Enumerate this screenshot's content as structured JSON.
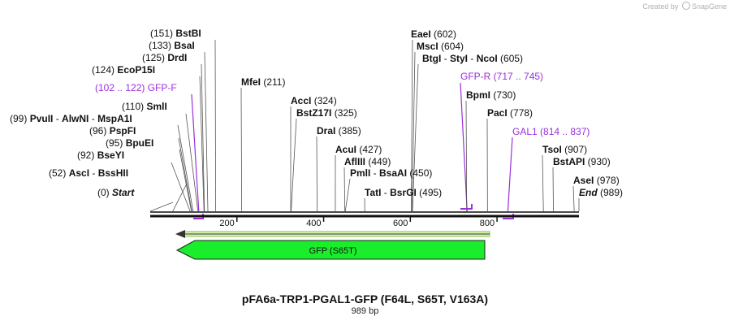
{
  "title": "pFA6a-TRP1-PGAL1-GFP (F64L, S65T, V163A)",
  "length_label": "989 bp",
  "brand": {
    "prefix": "Created by",
    "name": "SnapGene"
  },
  "scale": {
    "min_bp": 0,
    "max_bp": 989,
    "ticks": [
      "200",
      "400",
      "600",
      "800"
    ]
  },
  "sites": [
    {
      "position": "(0)",
      "parts": [
        {
          "text": "Start",
          "kind": "endpoint"
        }
      ]
    },
    {
      "position": "(52)",
      "parts": [
        {
          "text": "AscI",
          "kind": "enzyme"
        },
        {
          "text": "BssHII",
          "kind": "enzyme"
        }
      ]
    },
    {
      "position": "(92)",
      "parts": [
        {
          "text": "BseYI",
          "kind": "enzyme"
        }
      ]
    },
    {
      "position": "(95)",
      "parts": [
        {
          "text": "BpuEI",
          "kind": "enzyme"
        }
      ]
    },
    {
      "position": "(96)",
      "parts": [
        {
          "text": "PspFI",
          "kind": "enzyme"
        }
      ]
    },
    {
      "position": "(99)",
      "parts": [
        {
          "text": "PvuII",
          "kind": "enzyme"
        },
        {
          "text": "AlwNI",
          "kind": "enzyme"
        },
        {
          "text": "MspA1I",
          "kind": "enzyme"
        }
      ]
    },
    {
      "position": "(110)",
      "parts": [
        {
          "text": "SmlI",
          "kind": "enzyme"
        }
      ]
    },
    {
      "position": "(102 .. 122)",
      "parts": [
        {
          "text": "GFP-F",
          "kind": "primer"
        }
      ]
    },
    {
      "position": "(124)",
      "parts": [
        {
          "text": "EcoP15I",
          "kind": "enzyme"
        }
      ]
    },
    {
      "position": "(125)",
      "parts": [
        {
          "text": "DrdI",
          "kind": "enzyme"
        }
      ]
    },
    {
      "position": "(133)",
      "parts": [
        {
          "text": "BsaI",
          "kind": "enzyme"
        }
      ]
    },
    {
      "position": "(151)",
      "parts": [
        {
          "text": "BstBI",
          "kind": "enzyme"
        }
      ]
    },
    {
      "position": "(211)",
      "parts": [
        {
          "text": "MfeI",
          "kind": "enzyme"
        }
      ]
    },
    {
      "position": "(324)",
      "parts": [
        {
          "text": "AccI",
          "kind": "enzyme"
        }
      ]
    },
    {
      "position": "(325)",
      "parts": [
        {
          "text": "BstZ17I",
          "kind": "enzyme"
        }
      ]
    },
    {
      "position": "(385)",
      "parts": [
        {
          "text": "DraI",
          "kind": "enzyme"
        }
      ]
    },
    {
      "position": "(427)",
      "parts": [
        {
          "text": "AcuI",
          "kind": "enzyme"
        }
      ]
    },
    {
      "position": "(449)",
      "parts": [
        {
          "text": "AflIII",
          "kind": "enzyme"
        }
      ]
    },
    {
      "position": "(450)",
      "parts": [
        {
          "text": "PmlI",
          "kind": "enzyme"
        },
        {
          "text": "BsaAI",
          "kind": "enzyme"
        }
      ]
    },
    {
      "position": "(495)",
      "parts": [
        {
          "text": "TatI",
          "kind": "enzyme"
        },
        {
          "text": "BsrGI",
          "kind": "enzyme"
        }
      ]
    },
    {
      "position": "(602)",
      "parts": [
        {
          "text": "EaeI",
          "kind": "enzyme"
        }
      ]
    },
    {
      "position": "(604)",
      "parts": [
        {
          "text": "MscI",
          "kind": "enzyme"
        }
      ]
    },
    {
      "position": "(605)",
      "parts": [
        {
          "text": "BtgI",
          "kind": "enzyme"
        },
        {
          "text": "StyI",
          "kind": "enzyme"
        },
        {
          "text": "NcoI",
          "kind": "enzyme"
        }
      ]
    },
    {
      "position": "(717 .. 745)",
      "parts": [
        {
          "text": "GFP-R",
          "kind": "primer"
        }
      ]
    },
    {
      "position": "(730)",
      "parts": [
        {
          "text": "BpmI",
          "kind": "enzyme"
        }
      ]
    },
    {
      "position": "(778)",
      "parts": [
        {
          "text": "PacI",
          "kind": "enzyme"
        }
      ]
    },
    {
      "position": "(814 .. 837)",
      "parts": [
        {
          "text": "GAL1",
          "kind": "primer"
        }
      ]
    },
    {
      "position": "(907)",
      "parts": [
        {
          "text": "TsoI",
          "kind": "enzyme"
        }
      ]
    },
    {
      "position": "(930)",
      "parts": [
        {
          "text": "BstAPI",
          "kind": "enzyme"
        }
      ]
    },
    {
      "position": "(978)",
      "parts": [
        {
          "text": "AseI",
          "kind": "enzyme"
        }
      ]
    },
    {
      "position": "(989)",
      "parts": [
        {
          "text": "End",
          "kind": "endpoint"
        }
      ]
    }
  ],
  "features": [
    {
      "name": "GFP (S65T)",
      "type": "CDS",
      "direction": "reverse",
      "color": "#1aed2b"
    }
  ],
  "colors": {
    "primer": "#9b30d9",
    "feature": "#1aed2b",
    "orf": "#c9f0a0",
    "brand_logo": "#7fb2e5"
  }
}
